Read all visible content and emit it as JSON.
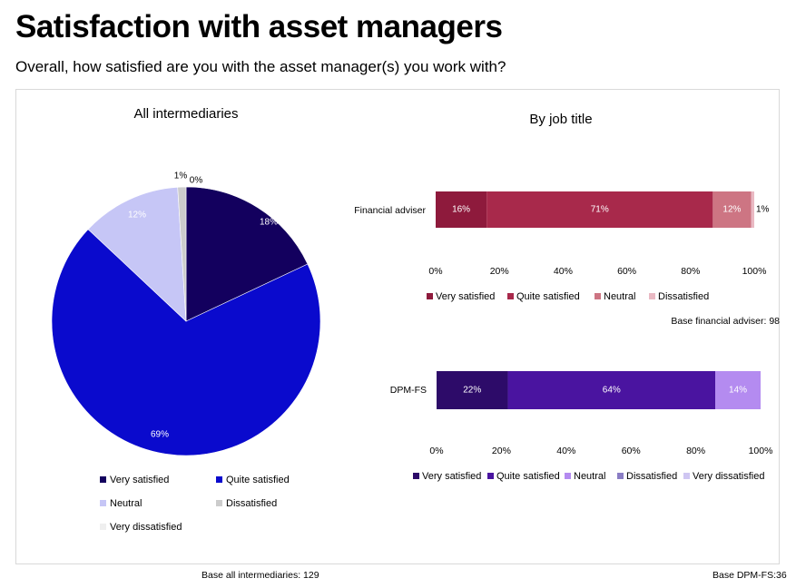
{
  "title": "Satisfaction with asset managers",
  "subtitle": "Overall, how satisfied are you with the asset manager(s) you work with?",
  "colors": {
    "pie": [
      "#13005e",
      "#0a0acd",
      "#c6c6f6",
      "#cccccc",
      "#efefef"
    ],
    "fa": [
      "#8e1a3c",
      "#a8294b",
      "#cd7583",
      "#e9b9c3"
    ],
    "dpm": [
      "#2d0b69",
      "#4a14a0",
      "#b48bf0",
      "#8a7dc4",
      "#cfc6f2"
    ]
  },
  "chart_data": [
    {
      "type": "pie",
      "title": "All intermediaries",
      "categories": [
        "Very satisfied",
        "Quite satisfied",
        "Neutral",
        "Dissatisfied",
        "Very dissatisfied"
      ],
      "values": [
        18,
        69,
        12,
        1,
        0
      ],
      "labels": [
        "18%",
        "69%",
        "12%",
        "1%",
        "0%"
      ],
      "legend": [
        "Very satisfied",
        "Quite satisfied",
        "Neutral",
        "Dissatisfied",
        "Very dissatisfied"
      ],
      "base": "Base all intermediaries: 129"
    },
    {
      "type": "bar",
      "orientation": "horizontal-stacked",
      "title": "By job title",
      "categories": [
        "Financial adviser"
      ],
      "series": [
        {
          "name": "Very satisfied",
          "values": [
            16
          ],
          "label": "16%"
        },
        {
          "name": "Quite satisfied",
          "values": [
            71
          ],
          "label": "71%"
        },
        {
          "name": "Neutral",
          "values": [
            12
          ],
          "label": "12%"
        },
        {
          "name": "Dissatisfied",
          "values": [
            1
          ],
          "label": "1%"
        }
      ],
      "xlim": [
        0,
        100
      ],
      "xticks": [
        "0%",
        "20%",
        "40%",
        "60%",
        "80%",
        "100%"
      ],
      "base": "Base financial adviser: 98"
    },
    {
      "type": "bar",
      "orientation": "horizontal-stacked",
      "categories": [
        "DPM-FS"
      ],
      "series": [
        {
          "name": "Very satisfied",
          "values": [
            22
          ],
          "label": "22%"
        },
        {
          "name": "Quite satisfied",
          "values": [
            64
          ],
          "label": "64%"
        },
        {
          "name": "Neutral",
          "values": [
            14
          ],
          "label": "14%"
        },
        {
          "name": "Dissatisfied",
          "values": [
            0
          ],
          "label": ""
        },
        {
          "name": "Very dissatisfied",
          "values": [
            0
          ],
          "label": ""
        }
      ],
      "xlim": [
        0,
        100
      ],
      "xticks": [
        "0%",
        "20%",
        "40%",
        "60%",
        "80%",
        "100%"
      ],
      "base": "Base DPM-FS:36"
    }
  ]
}
